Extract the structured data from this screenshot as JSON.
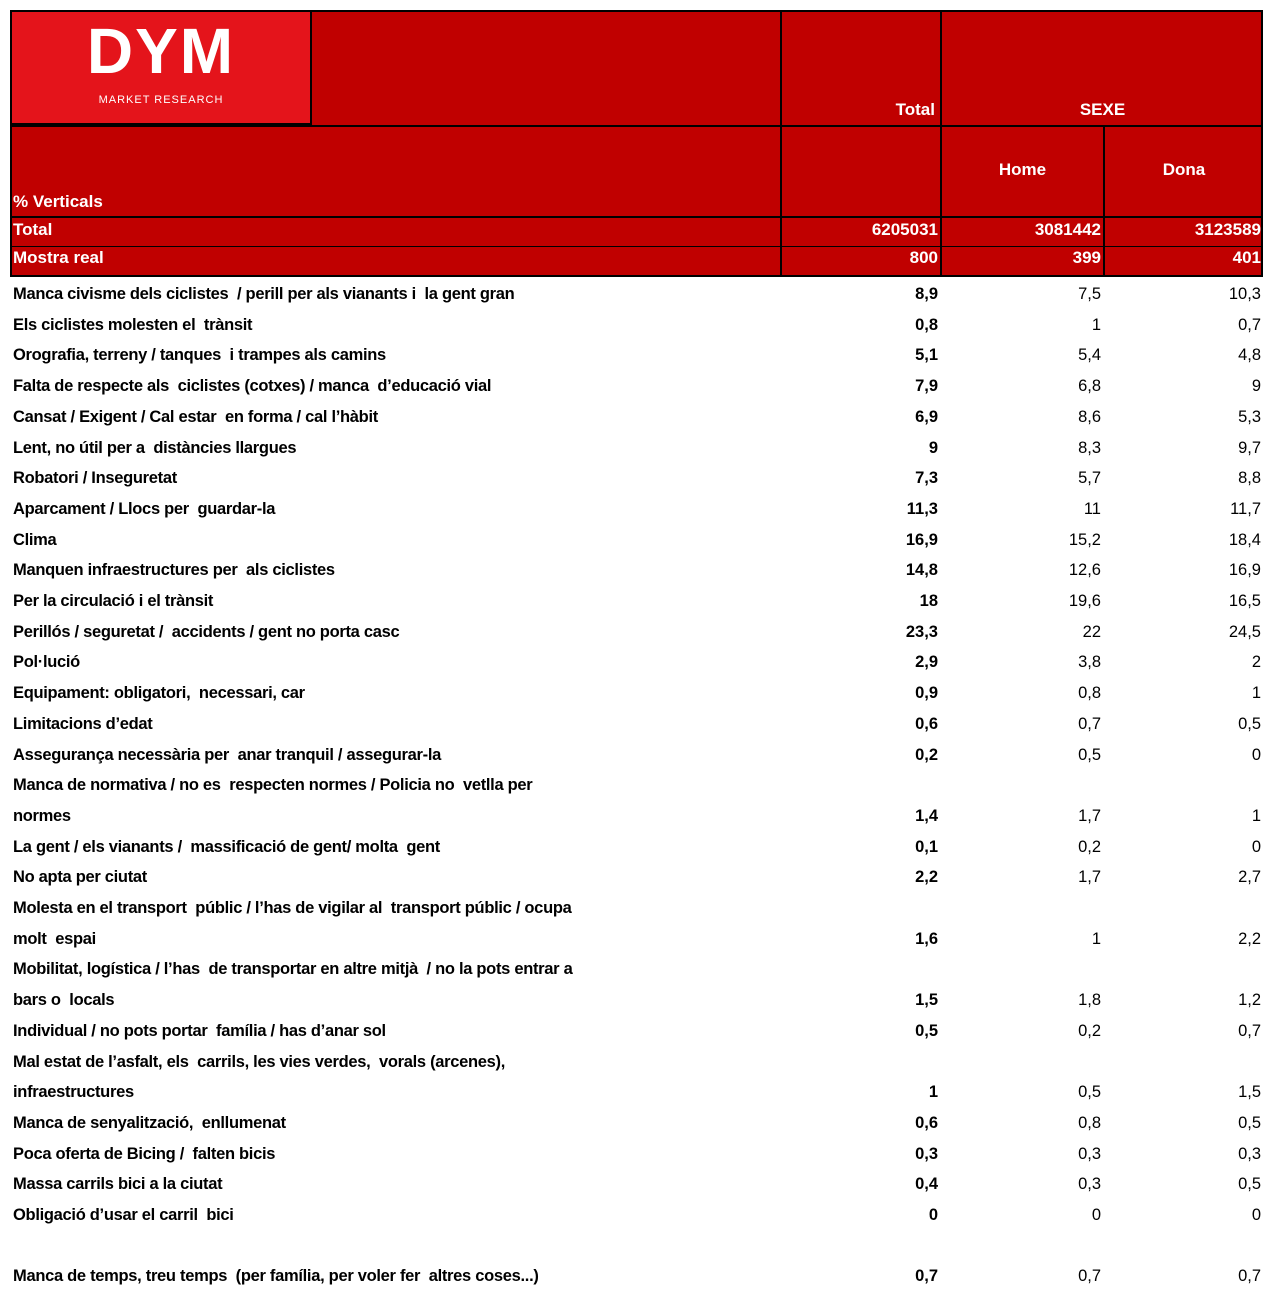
{
  "logo": {
    "name": "DYM",
    "tagline": "MARKET RESEARCH"
  },
  "header": {
    "stub": "% Verticals",
    "total": "Total",
    "group": "SEXE",
    "columns": [
      "Home",
      "Dona"
    ]
  },
  "summary": [
    {
      "label": "Total",
      "values": [
        "6205031",
        "3081442",
        "3123589"
      ]
    },
    {
      "label": "Mostra real",
      "values": [
        "800",
        "399",
        "401"
      ]
    }
  ],
  "table": {
    "rows": [
      {
        "label": [
          "Manca civisme dels ciclistes  / perill per als vianants i  la gent gran"
        ],
        "values": [
          "8,9",
          "7,5",
          "10,3"
        ]
      },
      {
        "label": [
          "Els ciclistes molesten el  trànsit"
        ],
        "values": [
          "0,8",
          "1",
          "0,7"
        ]
      },
      {
        "label": [
          "Orografia, terreny / tanques  i trampes als camins"
        ],
        "values": [
          "5,1",
          "5,4",
          "4,8"
        ]
      },
      {
        "label": [
          "Falta de respecte als  ciclistes (cotxes) / manca  d’educació vial"
        ],
        "values": [
          "7,9",
          "6,8",
          "9"
        ]
      },
      {
        "label": [
          "Cansat / Exigent / Cal estar  en forma / cal l’hàbit"
        ],
        "values": [
          "6,9",
          "8,6",
          "5,3"
        ]
      },
      {
        "label": [
          "Lent, no útil per a  distàncies llargues"
        ],
        "values": [
          "9",
          "8,3",
          "9,7"
        ]
      },
      {
        "label": [
          "Robatori / Inseguretat"
        ],
        "values": [
          "7,3",
          "5,7",
          "8,8"
        ]
      },
      {
        "label": [
          "Aparcament / Llocs per  guardar-la"
        ],
        "values": [
          "11,3",
          "11",
          "11,7"
        ]
      },
      {
        "label": [
          "Clima"
        ],
        "values": [
          "16,9",
          "15,2",
          "18,4"
        ]
      },
      {
        "label": [
          "Manquen infraestructures per  als ciclistes"
        ],
        "values": [
          "14,8",
          "12,6",
          "16,9"
        ]
      },
      {
        "label": [
          "Per la circulació i el trànsit"
        ],
        "values": [
          "18",
          "19,6",
          "16,5"
        ]
      },
      {
        "label": [
          "Perillós / seguretat /  accidents / gent no porta casc"
        ],
        "values": [
          "23,3",
          "22",
          "24,5"
        ]
      },
      {
        "label": [
          "Pol·lució"
        ],
        "values": [
          "2,9",
          "3,8",
          "2"
        ]
      },
      {
        "label": [
          "Equipament: obligatori,  necessari, car"
        ],
        "values": [
          "0,9",
          "0,8",
          "1"
        ]
      },
      {
        "label": [
          "Limitacions d’edat"
        ],
        "values": [
          "0,6",
          "0,7",
          "0,5"
        ]
      },
      {
        "label": [
          "Assegurança necessària per  anar tranquil / assegurar-la"
        ],
        "values": [
          "0,2",
          "0,5",
          "0"
        ]
      },
      {
        "label": [
          "Manca de normativa / no es  respecten normes / Policia no  vetlla per",
          "normes"
        ],
        "values": [
          "1,4",
          "1,7",
          "1"
        ]
      },
      {
        "label": [
          "La gent / els vianants /  massificació de gent/ molta  gent"
        ],
        "values": [
          "0,1",
          "0,2",
          "0"
        ]
      },
      {
        "label": [
          "No apta per ciutat"
        ],
        "values": [
          "2,2",
          "1,7",
          "2,7"
        ]
      },
      {
        "label": [
          "Molesta en el transport  públic / l’has de vigilar al  transport públic / ocupa",
          "molt  espai"
        ],
        "values": [
          "1,6",
          "1",
          "2,2"
        ]
      },
      {
        "label": [
          "Mobilitat, logística / l’has  de transportar en altre mitjà  / no la pots entrar a",
          "bars o  locals"
        ],
        "values": [
          "1,5",
          "1,8",
          "1,2"
        ]
      },
      {
        "label": [
          "Individual / no pots portar  família / has d’anar sol"
        ],
        "values": [
          "0,5",
          "0,2",
          "0,7"
        ]
      },
      {
        "label": [
          "Mal estat de l’asfalt, els  carrils, les vies verdes,  vorals (arcenes),",
          "infraestructures"
        ],
        "values": [
          "1",
          "0,5",
          "1,5"
        ]
      },
      {
        "label": [
          "Manca de senyalització,  enllumenat"
        ],
        "values": [
          "0,6",
          "0,8",
          "0,5"
        ]
      },
      {
        "label": [
          "Poca oferta de Bicing /  falten bicis"
        ],
        "values": [
          "0,3",
          "0,3",
          "0,3"
        ]
      },
      {
        "label": [
          "Massa carrils bici a la ciutat"
        ],
        "values": [
          "0,4",
          "0,3",
          "0,5"
        ]
      },
      {
        "label": [
          "Obligació d’usar el carril  bici"
        ],
        "values": [
          "0",
          "0",
          "0"
        ]
      },
      {
        "label": [
          "Manca de temps, treu temps  (per família, per voler fer  altres coses...)"
        ],
        "values": [
          "0,7",
          "0,7",
          "0,7"
        ]
      }
    ]
  }
}
